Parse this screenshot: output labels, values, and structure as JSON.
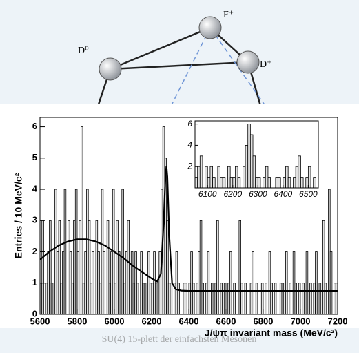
{
  "diagram": {
    "labels": [
      "D⁰",
      "F⁺",
      "D⁺"
    ],
    "caption": "SU(4) 15-plett der einfachsten Mesonen"
  },
  "chart_data": {
    "type": "histogram",
    "xlabel": "J/ψπ invariant mass (MeV/c²)",
    "ylabel": "Entries / 10 MeV/c²",
    "color": "#e2e2e2",
    "bins": [
      5600,
      5610,
      5620,
      5630,
      5640,
      5650,
      5660,
      5670,
      5680,
      5690,
      5700,
      5710,
      5720,
      5730,
      5740,
      5750,
      5760,
      5770,
      5780,
      5790,
      5800,
      5810,
      5820,
      5830,
      5840,
      5850,
      5860,
      5870,
      5880,
      5890,
      5900,
      5910,
      5920,
      5930,
      5940,
      5950,
      5960,
      5970,
      5980,
      5990,
      6000,
      6010,
      6020,
      6030,
      6040,
      6050,
      6060,
      6070,
      6080,
      6090,
      6100,
      6110,
      6120,
      6130,
      6140,
      6150,
      6160,
      6170,
      6180,
      6190,
      6200,
      6210,
      6220,
      6230,
      6240,
      6250,
      6260,
      6270,
      6280,
      6290,
      6300,
      6310,
      6320,
      6330,
      6340,
      6350,
      6360,
      6370,
      6380,
      6390,
      6400,
      6410,
      6420,
      6430,
      6440,
      6450,
      6460,
      6470,
      6480,
      6490,
      6500,
      6510,
      6520,
      6530,
      6540,
      6550,
      6560,
      6570,
      6580,
      6590,
      6600,
      6610,
      6620,
      6630,
      6640,
      6650,
      6660,
      6670,
      6680,
      6690,
      6700,
      6710,
      6720,
      6730,
      6740,
      6750,
      6760,
      6770,
      6780,
      6790,
      6800,
      6810,
      6820,
      6830,
      6840,
      6850,
      6860,
      6870,
      6880,
      6890,
      6900,
      6910,
      6920,
      6930,
      6940,
      6950,
      6960,
      6970,
      6980,
      6990,
      7000,
      7010,
      7020,
      7030,
      7040,
      7050,
      7060,
      7070,
      7080,
      7090,
      7100,
      7110,
      7120,
      7130,
      7140,
      7150,
      7160,
      7170,
      7180,
      7190,
      7200
    ],
    "values": [
      1,
      3,
      0,
      1,
      2,
      3,
      1,
      0,
      4,
      2,
      3,
      1,
      2,
      4,
      0,
      3,
      2,
      1,
      3,
      4,
      2,
      3,
      6,
      1,
      2,
      4,
      3,
      1,
      2,
      0,
      3,
      2,
      1,
      4,
      2,
      0,
      3,
      1,
      2,
      4,
      1,
      3,
      2,
      0,
      4,
      1,
      2,
      3,
      0,
      2,
      1,
      2,
      1,
      0,
      2,
      1,
      1,
      0,
      2,
      1,
      1,
      2,
      1,
      0,
      2,
      4,
      6,
      5,
      3,
      1,
      1,
      0,
      1,
      2,
      1,
      0,
      0,
      1,
      1,
      0,
      1,
      2,
      1,
      0,
      1,
      2,
      3,
      1,
      0,
      1,
      2,
      0,
      1,
      0,
      1,
      3,
      0,
      1,
      0,
      1,
      0,
      1,
      2,
      0,
      1,
      0,
      0,
      3,
      1,
      0,
      1,
      0,
      0,
      1,
      2,
      0,
      1,
      0,
      0,
      1,
      0,
      1,
      0,
      2,
      1,
      0,
      1,
      0,
      0,
      1,
      1,
      0,
      2,
      0,
      1,
      0,
      2,
      1,
      0,
      1,
      0,
      1,
      0,
      2,
      0,
      1,
      0,
      1,
      2,
      0,
      1,
      0,
      3,
      1,
      0,
      4,
      2,
      0,
      1,
      1
    ],
    "fit": {
      "color": "#000000",
      "x": [
        5600,
        5650,
        5700,
        5750,
        5800,
        5850,
        5900,
        5950,
        6000,
        6050,
        6100,
        6150,
        6200,
        6230,
        6250,
        6265,
        6275,
        6280,
        6285,
        6295,
        6310,
        6330,
        6360,
        6400,
        6500,
        6700,
        6900,
        7200
      ],
      "values": [
        1.75,
        2.0,
        2.2,
        2.33,
        2.4,
        2.4,
        2.33,
        2.2,
        2.0,
        1.8,
        1.55,
        1.35,
        1.15,
        1.05,
        1.3,
        3.0,
        4.5,
        4.75,
        4.4,
        2.5,
        1.0,
        0.8,
        0.76,
        0.75,
        0.75,
        0.75,
        0.75,
        0.75
      ]
    },
    "xlim": [
      5600,
      7200
    ],
    "xticks": [
      5600,
      5800,
      6000,
      6200,
      6400,
      6600,
      6800,
      7000,
      7200
    ],
    "ylim": [
      0,
      6.3
    ],
    "yticks": [
      0,
      1,
      2,
      3,
      4,
      5,
      6
    ],
    "inset": {
      "xlim": [
        6050,
        6540
      ],
      "xticks": [
        6100,
        6200,
        6300,
        6400,
        6500
      ],
      "ylim": [
        0,
        6.3
      ],
      "yticks": [
        2,
        4,
        6
      ]
    }
  }
}
